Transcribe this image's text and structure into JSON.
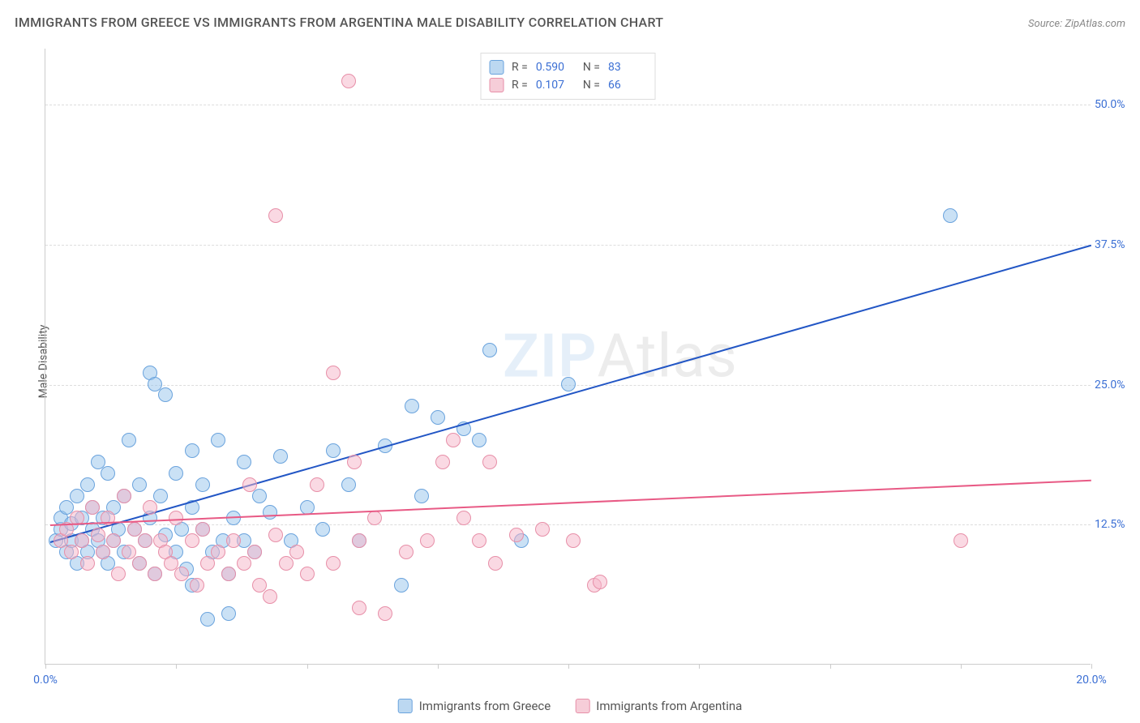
{
  "title": "IMMIGRANTS FROM GREECE VS IMMIGRANTS FROM ARGENTINA MALE DISABILITY CORRELATION CHART",
  "source_label": "Source:",
  "source_value": "ZipAtlas.com",
  "y_axis_label": "Male Disability",
  "watermark_a": "ZIP",
  "watermark_b": "Atlas",
  "chart": {
    "type": "scatter",
    "xlim": [
      0,
      20
    ],
    "ylim": [
      0,
      55
    ],
    "x_ticks": [
      0,
      2.5,
      5,
      7.5,
      10,
      12.5,
      15,
      17.5,
      20
    ],
    "x_tick_labels": {
      "0": "0.0%",
      "20": "20.0%"
    },
    "y_gridlines": [
      12.5,
      25,
      37.5,
      50
    ],
    "y_tick_labels": {
      "12.5": "12.5%",
      "25": "25.0%",
      "37.5": "37.5%",
      "50": "50.0%"
    },
    "background_color": "#ffffff",
    "grid_color": "#dddddd",
    "axis_color": "#cccccc",
    "tick_label_color": "#3b6fd4",
    "tick_label_fontsize": 14,
    "title_fontsize": 16,
    "title_color": "#555555",
    "marker_radius": 9,
    "marker_stroke_width": 1.5,
    "series": [
      {
        "name": "Immigrants from Greece",
        "fill_color": "rgba(150,195,235,0.5)",
        "stroke_color": "#6aa3dd",
        "swatch_fill": "#bcd8f1",
        "swatch_border": "#6aa3dd",
        "r": "0.590",
        "n": "83",
        "trend": {
          "x1": 0.1,
          "y1": 11.0,
          "x2": 20,
          "y2": 37.5,
          "color": "#2256c5",
          "width": 2
        },
        "points": [
          [
            0.2,
            11
          ],
          [
            0.3,
            12
          ],
          [
            0.3,
            13
          ],
          [
            0.4,
            10
          ],
          [
            0.4,
            14
          ],
          [
            0.5,
            11
          ],
          [
            0.5,
            12.5
          ],
          [
            0.6,
            9
          ],
          [
            0.6,
            15
          ],
          [
            0.7,
            11
          ],
          [
            0.7,
            13
          ],
          [
            0.8,
            10
          ],
          [
            0.8,
            16
          ],
          [
            0.9,
            12
          ],
          [
            0.9,
            14
          ],
          [
            1.0,
            11
          ],
          [
            1.0,
            18
          ],
          [
            1.1,
            10
          ],
          [
            1.1,
            13
          ],
          [
            1.2,
            9
          ],
          [
            1.2,
            17
          ],
          [
            1.3,
            11
          ],
          [
            1.3,
            14
          ],
          [
            1.4,
            12
          ],
          [
            1.5,
            15
          ],
          [
            1.5,
            10
          ],
          [
            1.6,
            20
          ],
          [
            1.7,
            12
          ],
          [
            1.8,
            9
          ],
          [
            1.8,
            16
          ],
          [
            1.9,
            11
          ],
          [
            2.0,
            26
          ],
          [
            2.0,
            13
          ],
          [
            2.1,
            8
          ],
          [
            2.1,
            25
          ],
          [
            2.2,
            15
          ],
          [
            2.3,
            11.5
          ],
          [
            2.3,
            24
          ],
          [
            2.5,
            10
          ],
          [
            2.5,
            17
          ],
          [
            2.6,
            12
          ],
          [
            2.7,
            8.5
          ],
          [
            2.8,
            14
          ],
          [
            2.8,
            19
          ],
          [
            2.8,
            7
          ],
          [
            3.0,
            12
          ],
          [
            3.0,
            16
          ],
          [
            3.1,
            4
          ],
          [
            3.2,
            10
          ],
          [
            3.3,
            20
          ],
          [
            3.4,
            11
          ],
          [
            3.5,
            8
          ],
          [
            3.5,
            4.5
          ],
          [
            3.6,
            13
          ],
          [
            3.8,
            18
          ],
          [
            3.8,
            11
          ],
          [
            4.0,
            10
          ],
          [
            4.1,
            15
          ],
          [
            4.3,
            13.5
          ],
          [
            4.5,
            18.5
          ],
          [
            4.7,
            11
          ],
          [
            5.0,
            14
          ],
          [
            5.3,
            12
          ],
          [
            5.5,
            19
          ],
          [
            5.8,
            16
          ],
          [
            6.0,
            11
          ],
          [
            6.5,
            19.5
          ],
          [
            6.8,
            7
          ],
          [
            7.0,
            23
          ],
          [
            7.2,
            15
          ],
          [
            7.5,
            22
          ],
          [
            8.0,
            21
          ],
          [
            8.3,
            20
          ],
          [
            8.5,
            28
          ],
          [
            9.1,
            11
          ],
          [
            10.0,
            25
          ],
          [
            17.3,
            40
          ]
        ]
      },
      {
        "name": "Immigrants from Argentina",
        "fill_color": "rgba(245,180,200,0.5)",
        "stroke_color": "#e78fa8",
        "swatch_fill": "#f6cdd8",
        "swatch_border": "#e78fa8",
        "r": "0.107",
        "n": "66",
        "trend": {
          "x1": 0.1,
          "y1": 12.5,
          "x2": 20,
          "y2": 16.5,
          "color": "#e85a85",
          "width": 2
        },
        "points": [
          [
            0.3,
            11
          ],
          [
            0.4,
            12
          ],
          [
            0.5,
            10
          ],
          [
            0.6,
            13
          ],
          [
            0.7,
            11
          ],
          [
            0.8,
            9
          ],
          [
            0.9,
            14
          ],
          [
            1.0,
            11.5
          ],
          [
            1.1,
            10
          ],
          [
            1.2,
            13
          ],
          [
            1.3,
            11
          ],
          [
            1.4,
            8
          ],
          [
            1.5,
            15
          ],
          [
            1.6,
            10
          ],
          [
            1.7,
            12
          ],
          [
            1.8,
            9
          ],
          [
            1.9,
            11
          ],
          [
            2.0,
            14
          ],
          [
            2.1,
            8
          ],
          [
            2.2,
            11
          ],
          [
            2.3,
            10
          ],
          [
            2.4,
            9
          ],
          [
            2.5,
            13
          ],
          [
            2.6,
            8
          ],
          [
            2.8,
            11
          ],
          [
            2.9,
            7
          ],
          [
            3.0,
            12
          ],
          [
            3.1,
            9
          ],
          [
            3.3,
            10
          ],
          [
            3.5,
            8
          ],
          [
            3.6,
            11
          ],
          [
            3.8,
            9
          ],
          [
            3.9,
            16
          ],
          [
            4.0,
            10
          ],
          [
            4.1,
            7
          ],
          [
            4.3,
            6
          ],
          [
            4.4,
            11.5
          ],
          [
            4.4,
            40
          ],
          [
            4.6,
            9
          ],
          [
            4.8,
            10
          ],
          [
            5.0,
            8
          ],
          [
            5.2,
            16
          ],
          [
            5.5,
            26
          ],
          [
            5.5,
            9
          ],
          [
            5.8,
            52
          ],
          [
            5.9,
            18
          ],
          [
            6.0,
            11
          ],
          [
            6.0,
            5
          ],
          [
            6.3,
            13
          ],
          [
            6.5,
            4.5
          ],
          [
            6.9,
            10
          ],
          [
            7.3,
            11
          ],
          [
            7.6,
            18
          ],
          [
            7.8,
            20
          ],
          [
            8.0,
            13
          ],
          [
            8.3,
            11
          ],
          [
            8.5,
            18
          ],
          [
            8.6,
            9
          ],
          [
            9.0,
            11.5
          ],
          [
            9.5,
            12
          ],
          [
            10.1,
            11
          ],
          [
            10.5,
            7
          ],
          [
            10.6,
            7.3
          ],
          [
            17.5,
            11
          ]
        ]
      }
    ],
    "legend_top": {
      "r_label": "R =",
      "n_label": "N ="
    },
    "legend_bottom_labels": [
      "Immigrants from Greece",
      "Immigrants from Argentina"
    ]
  }
}
